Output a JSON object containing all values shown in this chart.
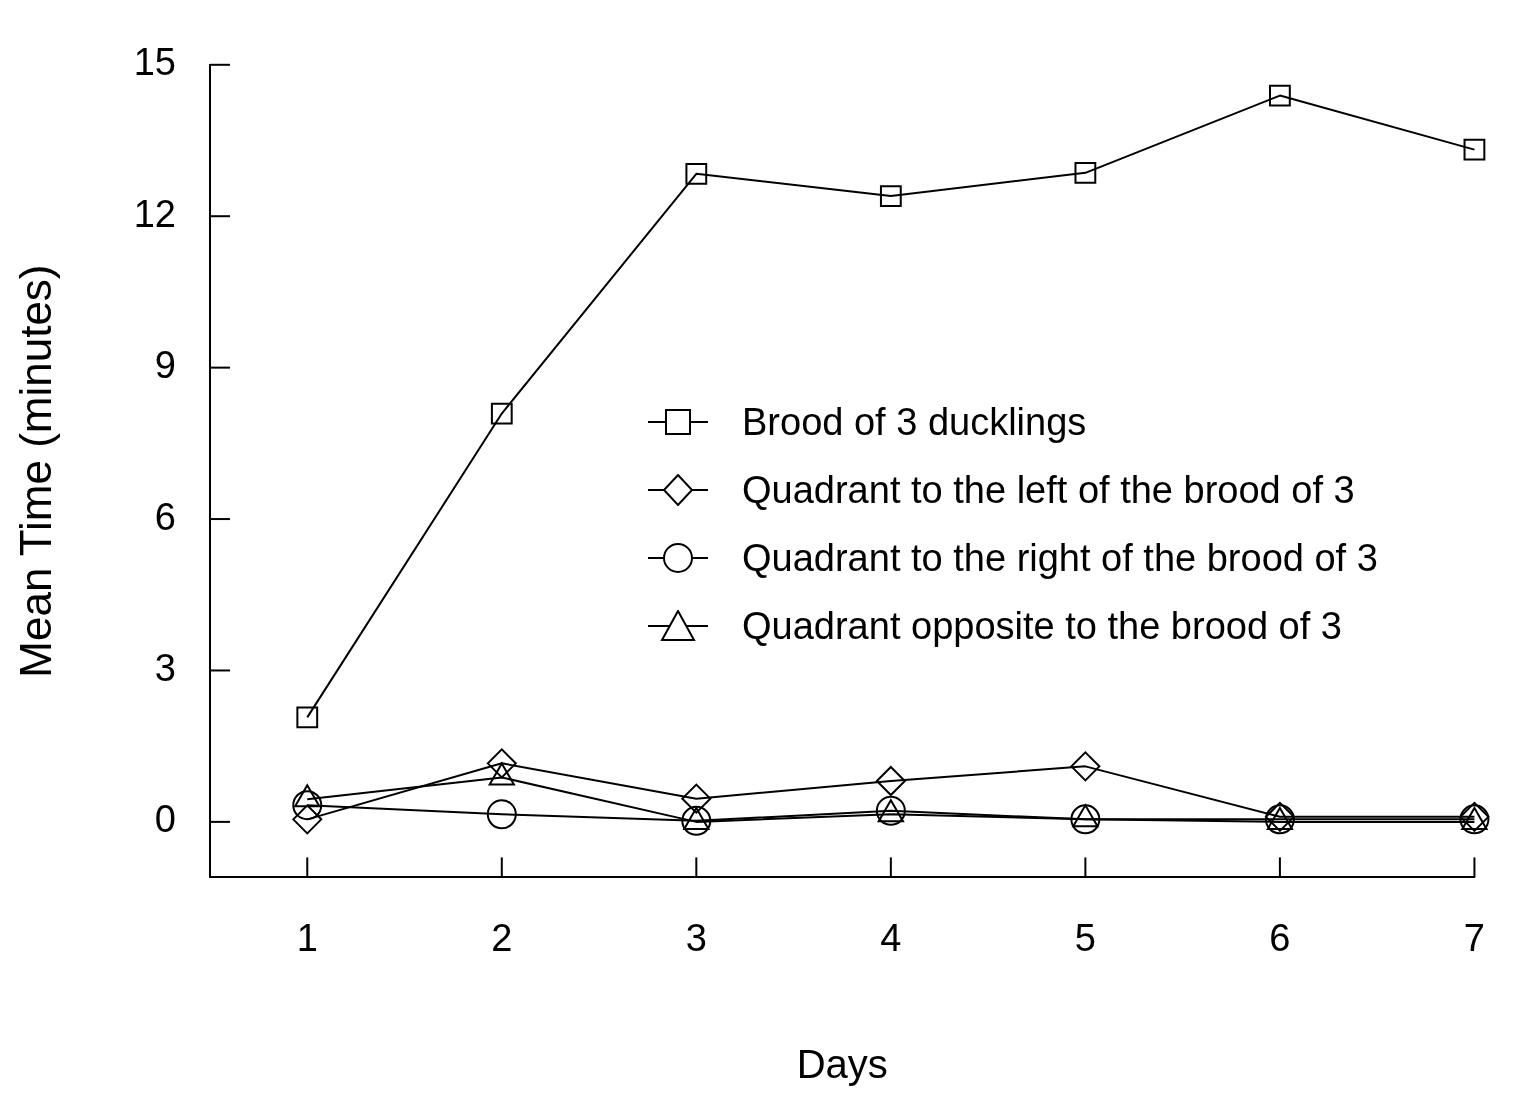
{
  "chart_data": {
    "type": "line",
    "xlabel": "Days",
    "ylabel": "Mean Time (minutes)",
    "x": [
      1,
      2,
      3,
      4,
      5,
      6,
      7
    ],
    "xlim": [
      0.5,
      7
    ],
    "xticks": [
      1,
      2,
      3,
      4,
      5,
      6,
      7
    ],
    "ylim": [
      -1.1,
      15
    ],
    "yticks": [
      0,
      3,
      6,
      9,
      12,
      15
    ],
    "grid": false,
    "legend": "right",
    "line_style": "solid",
    "series": [
      {
        "name": "Brood of 3 ducklings",
        "color": "#000000",
        "marker": "square",
        "values": [
          2.07,
          8.09,
          12.84,
          12.4,
          12.86,
          14.39,
          13.32
        ]
      },
      {
        "name": "Quadrant to the left of the brood of 3",
        "color": "#000000",
        "marker": "diamond",
        "values": [
          0.05,
          1.16,
          0.46,
          0.81,
          1.1,
          0.1,
          0.1
        ]
      },
      {
        "name": "Quadrant to the right of the brood of 3",
        "color": "#000000",
        "marker": "circle",
        "values": [
          0.33,
          0.15,
          0.02,
          0.22,
          0.05,
          0.05,
          0.05
        ]
      },
      {
        "name": "Quadrant opposite to the brood of 3",
        "color": "#000000",
        "marker": "triangle",
        "values": [
          0.45,
          0.88,
          0.0,
          0.15,
          0.05,
          0.0,
          0.0
        ]
      }
    ]
  }
}
